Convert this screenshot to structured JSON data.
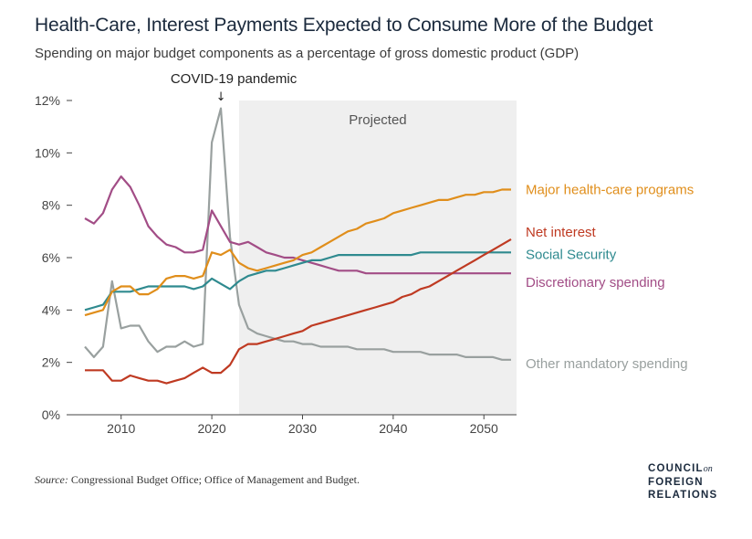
{
  "title": "Health-Care, Interest Payments Expected to Consume More of the Budget",
  "subtitle": "Spending on major budget components as a percentage of gross domestic product (GDP)",
  "annotation": {
    "text": "COVID-19 pandemic",
    "arrow": "↓"
  },
  "projected_label": "Projected",
  "source": {
    "label": "Source:",
    "text": "Congressional Budget Office; Office of Management and Budget."
  },
  "logo": {
    "line1": "COUNCIL",
    "on": "on",
    "line2": "FOREIGN",
    "line3": "RELATIONS"
  },
  "colors": {
    "health": "#e08e1b",
    "interest": "#bf3a22",
    "social_security": "#2f8a8f",
    "discretionary": "#a24d86",
    "other_mandatory": "#99a09f",
    "projected_band": "#efefef",
    "title": "#1b2a3d"
  },
  "chart_data": {
    "type": "line",
    "x_ticks": [
      2010,
      2020,
      2030,
      2040,
      2050
    ],
    "y_ticks": [
      0,
      2,
      4,
      6,
      8,
      10,
      12
    ],
    "y_tick_labels": [
      "0%",
      "2%",
      "4%",
      "6%",
      "8%",
      "10%",
      "12%"
    ],
    "xlim": [
      2005.8,
      2053.6
    ],
    "ylim": [
      0,
      12
    ],
    "projected_start": 2023,
    "grid": false,
    "legend": "labels at right end of lines",
    "series": [
      {
        "key": "health",
        "name": "Major health-care programs",
        "x": [
          2006,
          2007,
          2008,
          2009,
          2010,
          2011,
          2012,
          2013,
          2014,
          2015,
          2016,
          2017,
          2018,
          2019,
          2020,
          2021,
          2022,
          2023,
          2024,
          2025,
          2026,
          2027,
          2028,
          2029,
          2030,
          2031,
          2032,
          2033,
          2034,
          2035,
          2036,
          2037,
          2038,
          2039,
          2040,
          2041,
          2042,
          2043,
          2044,
          2045,
          2046,
          2047,
          2048,
          2049,
          2050,
          2051,
          2052,
          2053
        ],
        "y": [
          3.8,
          3.9,
          4.0,
          4.7,
          4.9,
          4.9,
          4.6,
          4.6,
          4.8,
          5.2,
          5.3,
          5.3,
          5.2,
          5.3,
          6.2,
          6.1,
          6.3,
          5.8,
          5.6,
          5.5,
          5.6,
          5.7,
          5.8,
          5.9,
          6.1,
          6.2,
          6.4,
          6.6,
          6.8,
          7.0,
          7.1,
          7.3,
          7.4,
          7.5,
          7.7,
          7.8,
          7.9,
          8.0,
          8.1,
          8.2,
          8.2,
          8.3,
          8.4,
          8.4,
          8.5,
          8.5,
          8.6,
          8.6
        ]
      },
      {
        "key": "interest",
        "name": "Net interest",
        "x": [
          2006,
          2007,
          2008,
          2009,
          2010,
          2011,
          2012,
          2013,
          2014,
          2015,
          2016,
          2017,
          2018,
          2019,
          2020,
          2021,
          2022,
          2023,
          2024,
          2025,
          2026,
          2027,
          2028,
          2029,
          2030,
          2031,
          2032,
          2033,
          2034,
          2035,
          2036,
          2037,
          2038,
          2039,
          2040,
          2041,
          2042,
          2043,
          2044,
          2045,
          2046,
          2047,
          2048,
          2049,
          2050,
          2051,
          2052,
          2053
        ],
        "y": [
          1.7,
          1.7,
          1.7,
          1.3,
          1.3,
          1.5,
          1.4,
          1.3,
          1.3,
          1.2,
          1.3,
          1.4,
          1.6,
          1.8,
          1.6,
          1.6,
          1.9,
          2.5,
          2.7,
          2.7,
          2.8,
          2.9,
          3.0,
          3.1,
          3.2,
          3.4,
          3.5,
          3.6,
          3.7,
          3.8,
          3.9,
          4.0,
          4.1,
          4.2,
          4.3,
          4.5,
          4.6,
          4.8,
          4.9,
          5.1,
          5.3,
          5.5,
          5.7,
          5.9,
          6.1,
          6.3,
          6.5,
          6.7
        ]
      },
      {
        "key": "social_security",
        "name": "Social Security",
        "x": [
          2006,
          2007,
          2008,
          2009,
          2010,
          2011,
          2012,
          2013,
          2014,
          2015,
          2016,
          2017,
          2018,
          2019,
          2020,
          2021,
          2022,
          2023,
          2024,
          2025,
          2026,
          2027,
          2028,
          2029,
          2030,
          2031,
          2032,
          2033,
          2034,
          2035,
          2036,
          2037,
          2038,
          2039,
          2040,
          2041,
          2042,
          2043,
          2044,
          2045,
          2046,
          2047,
          2048,
          2049,
          2050,
          2051,
          2052,
          2053
        ],
        "y": [
          4.0,
          4.1,
          4.2,
          4.7,
          4.7,
          4.7,
          4.8,
          4.9,
          4.9,
          4.9,
          4.9,
          4.9,
          4.8,
          4.9,
          5.2,
          5.0,
          4.8,
          5.1,
          5.3,
          5.4,
          5.5,
          5.5,
          5.6,
          5.7,
          5.8,
          5.9,
          5.9,
          6.0,
          6.1,
          6.1,
          6.1,
          6.1,
          6.1,
          6.1,
          6.1,
          6.1,
          6.1,
          6.2,
          6.2,
          6.2,
          6.2,
          6.2,
          6.2,
          6.2,
          6.2,
          6.2,
          6.2,
          6.2
        ]
      },
      {
        "key": "discretionary",
        "name": "Discretionary spending",
        "x": [
          2006,
          2007,
          2008,
          2009,
          2010,
          2011,
          2012,
          2013,
          2014,
          2015,
          2016,
          2017,
          2018,
          2019,
          2020,
          2021,
          2022,
          2023,
          2024,
          2025,
          2026,
          2027,
          2028,
          2029,
          2030,
          2031,
          2032,
          2033,
          2034,
          2035,
          2036,
          2037,
          2038,
          2039,
          2040,
          2041,
          2042,
          2043,
          2044,
          2045,
          2046,
          2047,
          2048,
          2049,
          2050,
          2051,
          2052,
          2053
        ],
        "y": [
          7.5,
          7.3,
          7.7,
          8.6,
          9.1,
          8.7,
          8.0,
          7.2,
          6.8,
          6.5,
          6.4,
          6.2,
          6.2,
          6.3,
          7.8,
          7.2,
          6.6,
          6.5,
          6.6,
          6.4,
          6.2,
          6.1,
          6.0,
          6.0,
          5.9,
          5.8,
          5.7,
          5.6,
          5.5,
          5.5,
          5.5,
          5.4,
          5.4,
          5.4,
          5.4,
          5.4,
          5.4,
          5.4,
          5.4,
          5.4,
          5.4,
          5.4,
          5.4,
          5.4,
          5.4,
          5.4,
          5.4,
          5.4
        ]
      },
      {
        "key": "other_mandatory",
        "name": "Other mandatory spending",
        "x": [
          2006,
          2007,
          2008,
          2009,
          2010,
          2011,
          2012,
          2013,
          2014,
          2015,
          2016,
          2017,
          2018,
          2019,
          2020,
          2021,
          2022,
          2023,
          2024,
          2025,
          2026,
          2027,
          2028,
          2029,
          2030,
          2031,
          2032,
          2033,
          2034,
          2035,
          2036,
          2037,
          2038,
          2039,
          2040,
          2041,
          2042,
          2043,
          2044,
          2045,
          2046,
          2047,
          2048,
          2049,
          2050,
          2051,
          2052,
          2053
        ],
        "y": [
          2.6,
          2.2,
          2.6,
          5.1,
          3.3,
          3.4,
          3.4,
          2.8,
          2.4,
          2.6,
          2.6,
          2.8,
          2.6,
          2.7,
          10.4,
          11.7,
          6.8,
          4.2,
          3.3,
          3.1,
          3.0,
          2.9,
          2.8,
          2.8,
          2.7,
          2.7,
          2.6,
          2.6,
          2.6,
          2.6,
          2.5,
          2.5,
          2.5,
          2.5,
          2.4,
          2.4,
          2.4,
          2.4,
          2.3,
          2.3,
          2.3,
          2.3,
          2.2,
          2.2,
          2.2,
          2.2,
          2.1,
          2.1
        ]
      }
    ]
  }
}
